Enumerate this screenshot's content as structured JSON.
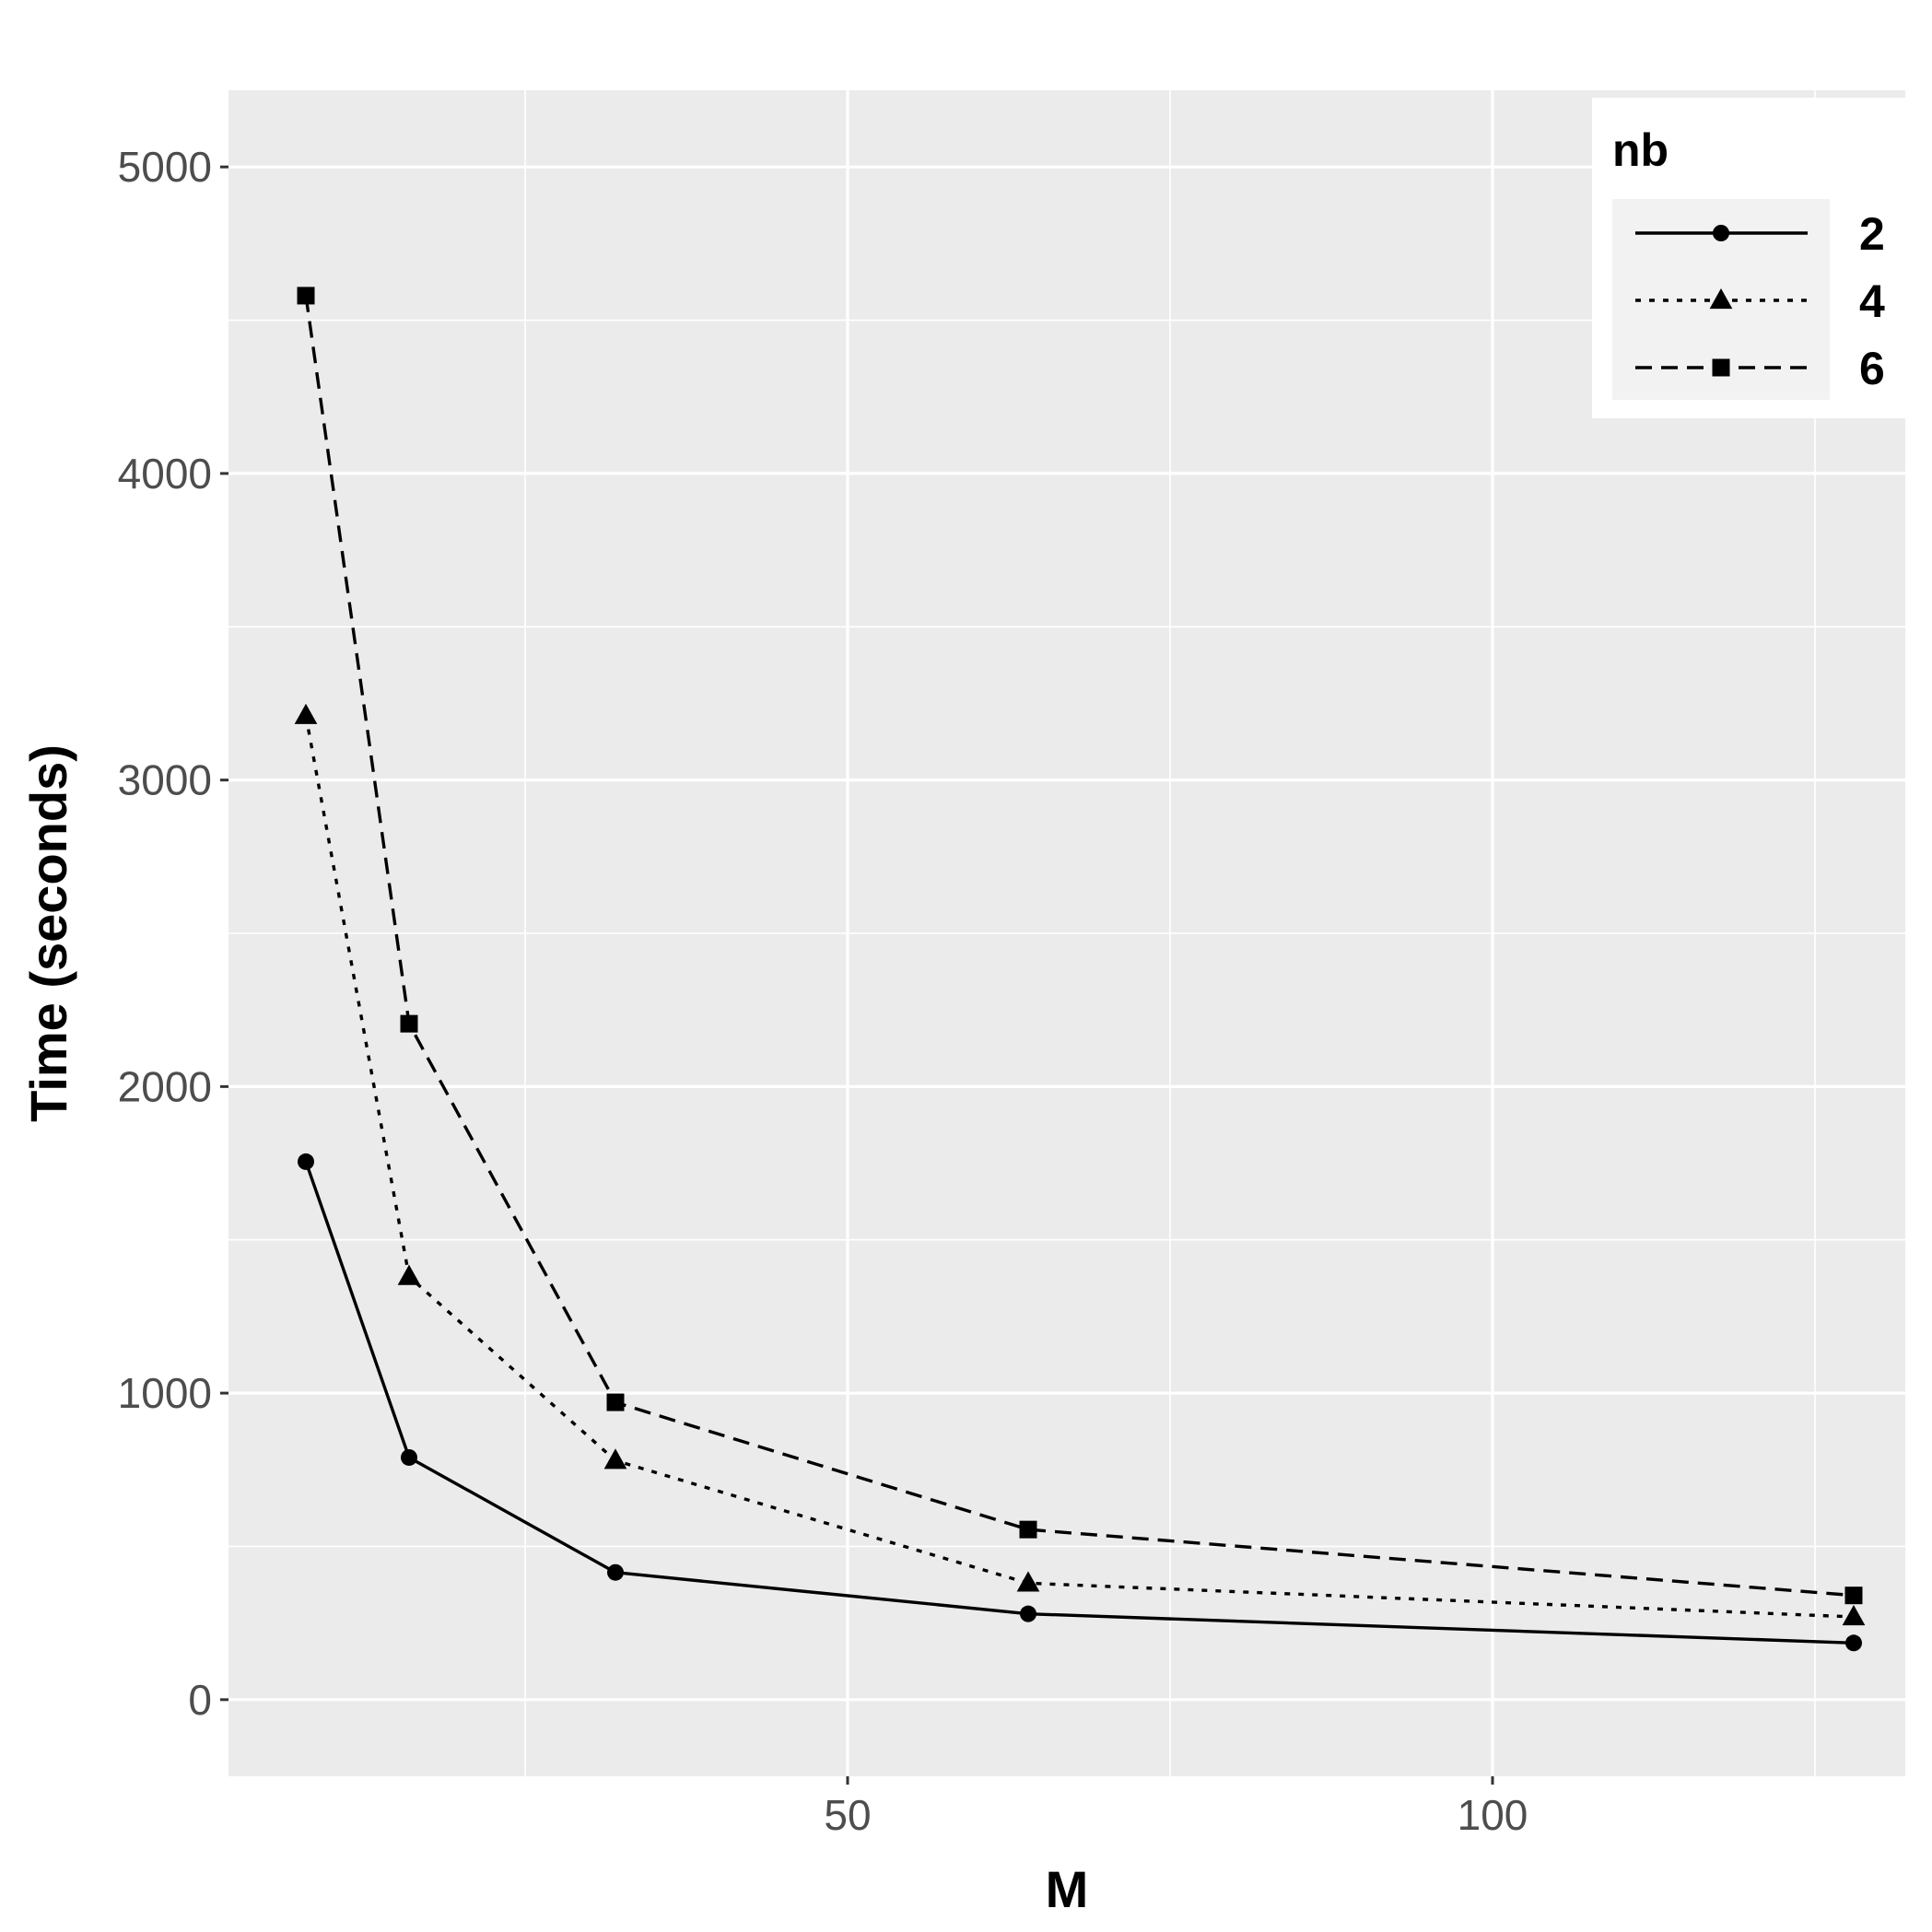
{
  "chart_data": {
    "type": "line",
    "xlabel": "M",
    "ylabel": "Time (seconds)",
    "xlim": [
      2,
      132
    ],
    "ylim": [
      -250,
      5250
    ],
    "x_ticks": [
      50,
      100
    ],
    "y_ticks": [
      0,
      1000,
      2000,
      3000,
      4000,
      5000
    ],
    "x": [
      8,
      16,
      32,
      64,
      128
    ],
    "grid": true,
    "legend": {
      "title": "nb",
      "position": "top-right"
    },
    "series": [
      {
        "name": "2",
        "line_style": "solid",
        "marker": "circle",
        "values": [
          1755,
          790,
          415,
          280,
          185
        ]
      },
      {
        "name": "4",
        "line_style": "dotted",
        "marker": "triangle",
        "values": [
          3210,
          1380,
          780,
          380,
          270
        ]
      },
      {
        "name": "6",
        "line_style": "dashed",
        "marker": "square",
        "values": [
          4580,
          2205,
          970,
          555,
          340
        ]
      }
    ],
    "colors": {
      "panel": "#ebebeb",
      "grid": "#ffffff",
      "ink": "#000000",
      "tick_text": "#4d4d4d"
    }
  }
}
